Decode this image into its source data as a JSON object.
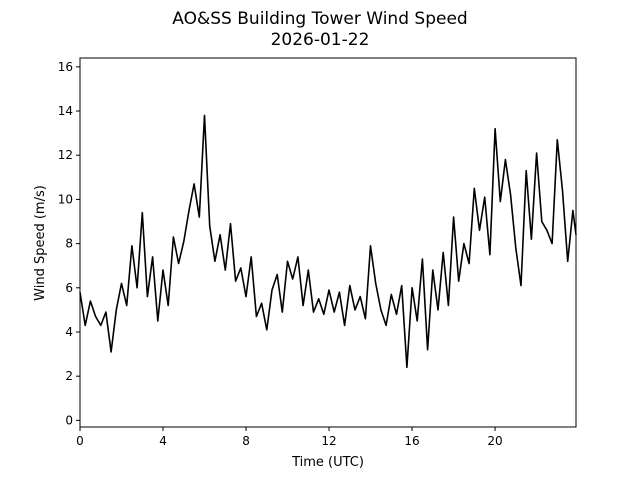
{
  "chart_data": {
    "type": "line",
    "title": "AO&SS Building Tower Wind Speed",
    "subtitle": "2026-01-22",
    "xlabel": "Time (UTC)",
    "ylabel": "Wind Speed (m/s)",
    "xlim": [
      0,
      23.9
    ],
    "ylim": [
      -0.3,
      16.4
    ],
    "xticks": [
      0,
      4,
      8,
      12,
      16,
      20
    ],
    "yticks": [
      0,
      2,
      4,
      6,
      8,
      10,
      12,
      14,
      16
    ],
    "grid": false,
    "line_color": "#000000",
    "series": [
      {
        "x": [
          0.0,
          0.25,
          0.5,
          0.75,
          1.0,
          1.25,
          1.5,
          1.75,
          2.0,
          2.25,
          2.5,
          2.75,
          3.0,
          3.25,
          3.5,
          3.75,
          4.0,
          4.25,
          4.5,
          4.75,
          5.0,
          5.25,
          5.5,
          5.75,
          6.0,
          6.25,
          6.5,
          6.75,
          7.0,
          7.25,
          7.5,
          7.75,
          8.0,
          8.25,
          8.5,
          8.75,
          9.0,
          9.25,
          9.5,
          9.75,
          10.0,
          10.25,
          10.5,
          10.75,
          11.0,
          11.25,
          11.5,
          11.75,
          12.0,
          12.25,
          12.5,
          12.75,
          13.0,
          13.25,
          13.5,
          13.75,
          14.0,
          14.25,
          14.5,
          14.75,
          15.0,
          15.25,
          15.5,
          15.75,
          16.0,
          16.25,
          16.5,
          16.75,
          17.0,
          17.25,
          17.5,
          17.75,
          18.0,
          18.25,
          18.5,
          18.75,
          19.0,
          19.25,
          19.5,
          19.75,
          20.0,
          20.25,
          20.5,
          20.75,
          21.0,
          21.25,
          21.5,
          21.75,
          22.0,
          22.25,
          22.5,
          22.75,
          23.0,
          23.25,
          23.5,
          23.75,
          23.9
        ],
        "values": [
          5.8,
          4.3,
          5.4,
          4.7,
          4.3,
          4.9,
          3.1,
          5.0,
          6.2,
          5.2,
          7.9,
          6.0,
          9.4,
          5.6,
          7.4,
          4.5,
          6.8,
          5.2,
          8.3,
          7.1,
          8.1,
          9.5,
          10.7,
          9.2,
          13.8,
          8.8,
          7.2,
          8.4,
          6.8,
          8.9,
          6.3,
          6.9,
          5.6,
          7.4,
          4.7,
          5.3,
          4.1,
          5.9,
          6.6,
          4.9,
          7.2,
          6.4,
          7.4,
          5.2,
          6.8,
          4.9,
          5.5,
          4.8,
          5.9,
          4.9,
          5.8,
          4.3,
          6.1,
          5.0,
          5.6,
          4.6,
          7.9,
          6.2,
          5.0,
          4.3,
          5.7,
          4.8,
          6.1,
          2.4,
          6.0,
          4.5,
          7.3,
          3.2,
          6.8,
          5.0,
          7.6,
          5.2,
          9.2,
          6.3,
          8.0,
          7.1,
          10.5,
          8.6,
          10.1,
          7.5,
          13.2,
          9.9,
          11.8,
          10.2,
          7.8,
          6.1,
          11.3,
          8.2,
          12.1,
          9.0,
          8.6,
          8.0,
          12.7,
          10.4,
          7.2,
          9.5,
          8.4
        ]
      }
    ]
  }
}
